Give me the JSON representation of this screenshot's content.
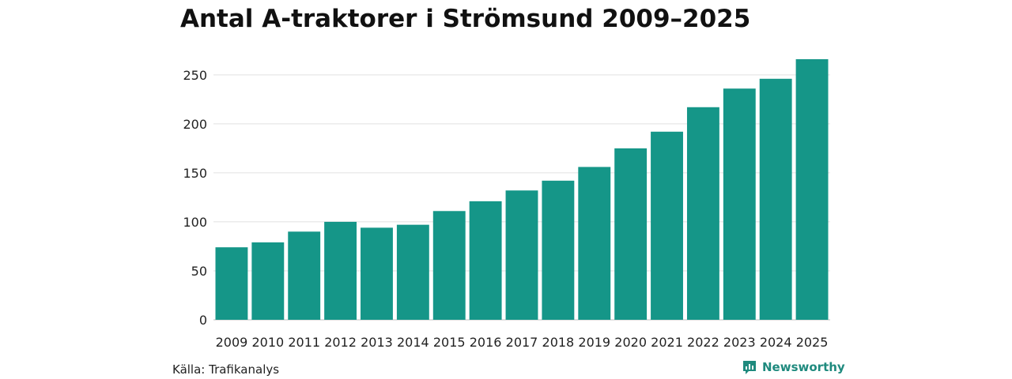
{
  "chart_data": {
    "type": "bar",
    "title": "Antal A-traktorer i Strömsund 2009–2025",
    "xlabel": "",
    "ylabel": "",
    "categories": [
      "2009",
      "2010",
      "2011",
      "2012",
      "2013",
      "2014",
      "2015",
      "2016",
      "2017",
      "2018",
      "2019",
      "2020",
      "2021",
      "2022",
      "2023",
      "2024",
      "2025"
    ],
    "values": [
      74,
      79,
      90,
      100,
      94,
      97,
      111,
      121,
      132,
      142,
      156,
      175,
      192,
      217,
      236,
      246,
      266
    ],
    "ylim": [
      0,
      270
    ],
    "yticks": [
      0,
      50,
      100,
      150,
      200,
      250
    ],
    "ytick_labels": [
      "0",
      "50",
      "100",
      "150",
      "200",
      "250"
    ],
    "grid": "horizontal",
    "bar_color": "#159688"
  },
  "footer": {
    "source": "Källa: Trafikanalys",
    "brand": "Newsworthy",
    "brand_icon": "newsworthy-logo-icon",
    "brand_color": "#1f8a7e"
  }
}
